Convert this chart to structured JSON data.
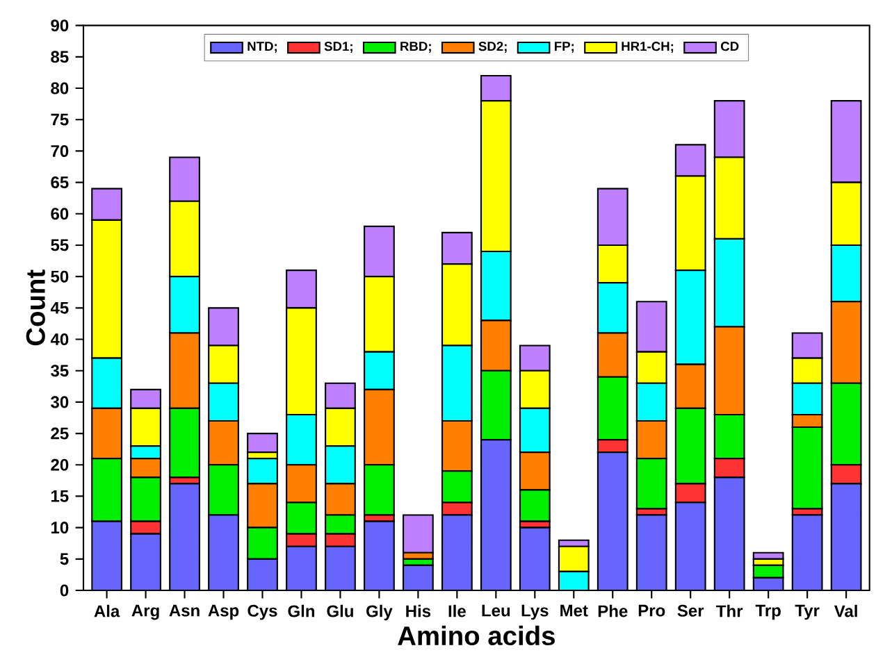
{
  "chart_data": {
    "type": "bar",
    "stacked": true,
    "xlabel": "Amino acids",
    "ylabel": "Count",
    "categories": [
      "Ala",
      "Arg",
      "Asn",
      "Asp",
      "Cys",
      "Gln",
      "Glu",
      "Gly",
      "His",
      "Ile",
      "Leu",
      "Lys",
      "Met",
      "Phe",
      "Pro",
      "Ser",
      "Thr",
      "Trp",
      "Tyr",
      "Val"
    ],
    "ylim": [
      0,
      90
    ],
    "yticks": [
      0,
      5,
      10,
      15,
      20,
      25,
      30,
      35,
      40,
      45,
      50,
      55,
      60,
      65,
      70,
      75,
      80,
      85,
      90
    ],
    "legend": "top",
    "grid": false,
    "series": [
      {
        "name": "NTD;",
        "color": "#6666ff",
        "values": [
          11,
          9,
          17,
          12,
          5,
          7,
          7,
          11,
          4,
          12,
          24,
          10,
          0,
          22,
          12,
          14,
          18,
          2,
          12,
          17
        ]
      },
      {
        "name": "SD1;",
        "color": "#ff3333",
        "values": [
          0,
          2,
          1,
          0,
          0,
          2,
          2,
          1,
          0,
          2,
          0,
          1,
          0,
          2,
          1,
          3,
          3,
          0,
          1,
          3
        ]
      },
      {
        "name": "RBD;",
        "color": "#00ee00",
        "values": [
          10,
          7,
          11,
          8,
          5,
          5,
          3,
          8,
          1,
          5,
          11,
          5,
          0,
          10,
          8,
          12,
          7,
          2,
          13,
          13
        ]
      },
      {
        "name": "SD2;",
        "color": "#ff8000",
        "values": [
          8,
          3,
          12,
          7,
          7,
          6,
          5,
          12,
          1,
          8,
          8,
          6,
          0,
          7,
          6,
          7,
          14,
          0,
          2,
          13
        ]
      },
      {
        "name": "FP;",
        "color": "#00ffff",
        "values": [
          8,
          2,
          9,
          6,
          4,
          8,
          6,
          6,
          0,
          12,
          11,
          7,
          3,
          8,
          6,
          15,
          14,
          0,
          5,
          9
        ]
      },
      {
        "name": "HR1-CH;",
        "color": "#ffff00",
        "values": [
          22,
          6,
          12,
          6,
          1,
          17,
          6,
          12,
          0,
          13,
          24,
          6,
          4,
          6,
          5,
          15,
          13,
          1,
          4,
          10
        ]
      },
      {
        "name": "CD",
        "color": "#bf80ff",
        "values": [
          5,
          3,
          7,
          6,
          3,
          6,
          4,
          8,
          6,
          5,
          4,
          4,
          1,
          9,
          8,
          5,
          9,
          1,
          4,
          13
        ]
      }
    ]
  }
}
